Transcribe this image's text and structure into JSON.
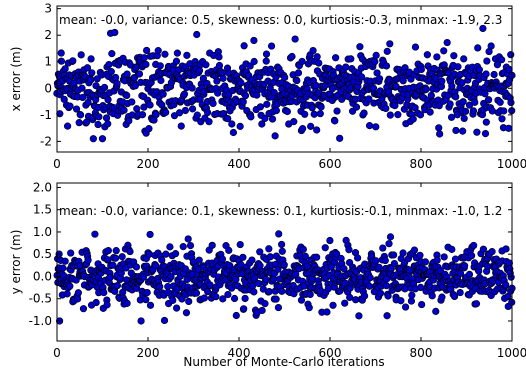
{
  "chart_data": [
    {
      "type": "scatter",
      "id": "x_error",
      "stats_text": "mean: -0.0, variance: 0.5, skewness: 0.0, kurtiosis:-0.3, minmax: -1.9, 2.3",
      "xlabel": "",
      "ylabel": "x error (m)",
      "xlim": [
        0,
        1000
      ],
      "ylim": [
        -2.4,
        3.1
      ],
      "xticks": [
        "0",
        "200",
        "400",
        "600",
        "800",
        "1000"
      ],
      "yticks": [
        "-2",
        "-1",
        "0",
        "1",
        "2",
        "3"
      ],
      "xtick_values": [
        0,
        200,
        400,
        600,
        800,
        1000
      ],
      "ytick_values": [
        -2,
        -1,
        0,
        1,
        2,
        3
      ],
      "n_points": 1000,
      "stats": {
        "mean": 0.0,
        "std": 0.707,
        "min": -1.9,
        "max": 2.3
      },
      "marker_color": "#0000cc",
      "marker_edge": "#000000",
      "grid": false
    },
    {
      "type": "scatter",
      "id": "y_error",
      "stats_text": "mean: -0.0, variance: 0.1, skewness: 0.1, kurtiosis:-0.1, minmax: -1.0, 1.2",
      "xlabel": "Number of Monte-Carlo iterations",
      "ylabel": "y error (m)",
      "xlim": [
        0,
        1000
      ],
      "ylim": [
        -1.45,
        2.1
      ],
      "xticks": [
        "0",
        "200",
        "400",
        "600",
        "800",
        "1000"
      ],
      "yticks": [
        "-1.0",
        "-0.5",
        "0.0",
        "0.5",
        "1.0",
        "1.5",
        "2.0"
      ],
      "xtick_values": [
        0,
        200,
        400,
        600,
        800,
        1000
      ],
      "ytick_values": [
        -1.0,
        -0.5,
        0.0,
        0.5,
        1.0,
        1.5,
        2.0
      ],
      "n_points": 1000,
      "stats": {
        "mean": 0.0,
        "std": 0.316,
        "min": -1.0,
        "max": 1.2
      },
      "marker_color": "#0000cc",
      "marker_edge": "#000000",
      "grid": false
    }
  ]
}
